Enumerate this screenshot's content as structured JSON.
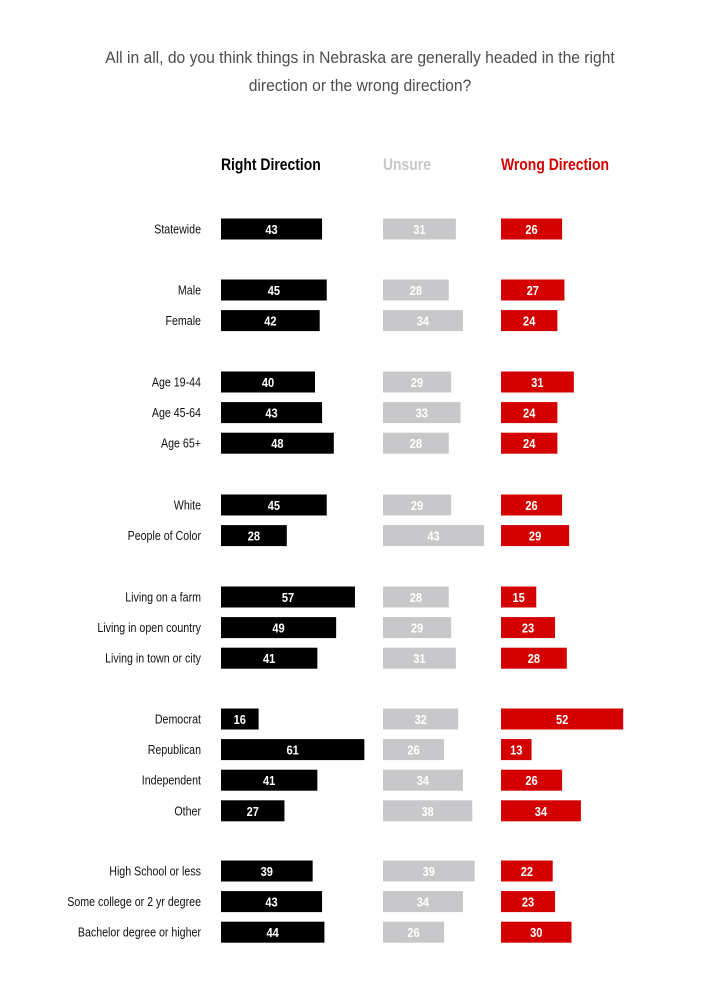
{
  "chart_data": {
    "type": "bar",
    "title": "All in all, do you think things in Nebraska are generally headed in the right direction or the wrong direction?",
    "series": [
      {
        "name": "Right Direction",
        "color": "#000000",
        "label_color": "#ffffff",
        "values": [
          43,
          45,
          42,
          40,
          43,
          48,
          45,
          28,
          57,
          49,
          41,
          16,
          61,
          41,
          27,
          39,
          43,
          44
        ]
      },
      {
        "name": "Unsure",
        "color": "#c8c8ca",
        "label_color": "#ffffff",
        "values": [
          31,
          28,
          34,
          29,
          33,
          28,
          29,
          43,
          28,
          29,
          31,
          32,
          26,
          34,
          38,
          39,
          34,
          26
        ]
      },
      {
        "name": "Wrong Direction",
        "color": "#d40000",
        "label_color": "#ffffff",
        "values": [
          26,
          27,
          24,
          31,
          24,
          24,
          26,
          29,
          15,
          23,
          28,
          52,
          13,
          26,
          34,
          22,
          23,
          30
        ]
      }
    ],
    "groups": [
      [
        "Statewide"
      ],
      [
        "Male",
        "Female"
      ],
      [
        "Age 19-44",
        "Age 45-64",
        "Age 65+"
      ],
      [
        "White",
        "People of Color"
      ],
      [
        "Living on a farm",
        "Living in open country",
        "Living in town or city"
      ],
      [
        "Democrat",
        "Republican",
        "Independent",
        "Other"
      ],
      [
        "High School or less",
        "Some college or 2 yr degree",
        "Bachelor degree or higher"
      ]
    ]
  }
}
